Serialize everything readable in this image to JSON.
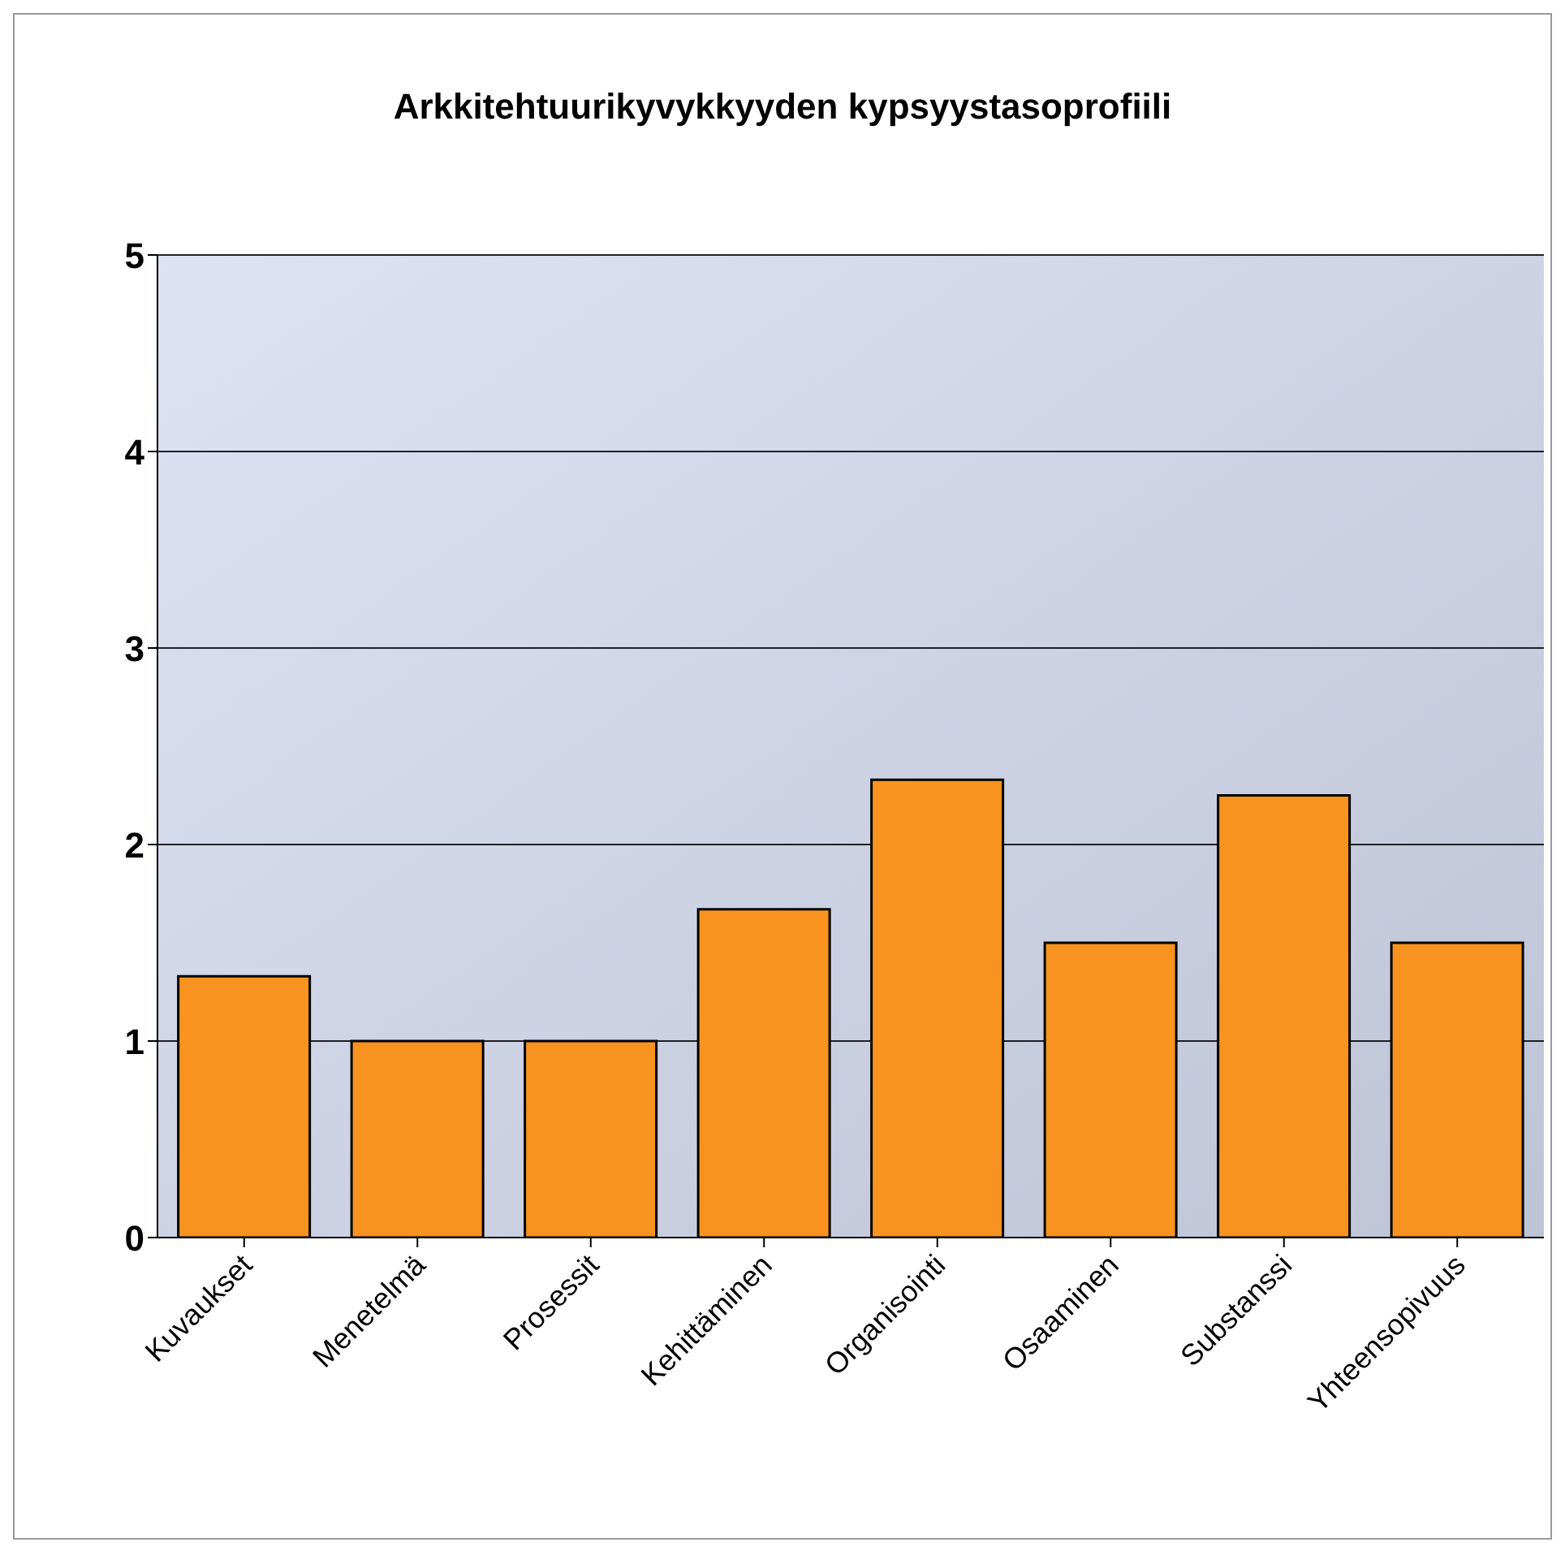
{
  "chart_data": {
    "type": "bar",
    "title": "Arkkitehtuurikyvykkyyden kypsyystasoprofiili",
    "categories": [
      "Kuvaukset",
      "Menetelmä",
      "Prosessit",
      "Kehittäminen",
      "Organisointi",
      "Osaaminen",
      "Substanssi",
      "Yhteensopivuus"
    ],
    "values": [
      1.33,
      1,
      1,
      1.67,
      2.33,
      1.5,
      2.25,
      1.5
    ],
    "color": "#f7931e",
    "ylim": [
      0,
      5
    ],
    "yticks": [
      0,
      1,
      2,
      3,
      4,
      5
    ],
    "grid": "y"
  }
}
